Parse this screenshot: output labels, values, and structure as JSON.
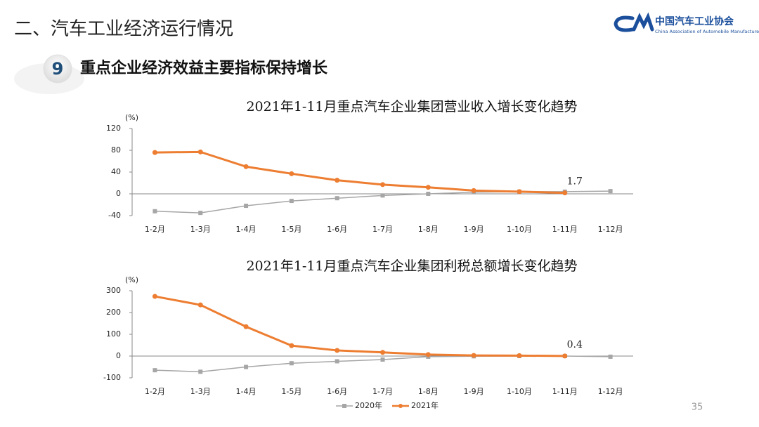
{
  "header": {
    "title": "二、汽车工业经济运行情况",
    "section_number": "9",
    "subtitle": "重点企业经济效益主要指标保持增长",
    "logo_cn": "中国汽车工业协会",
    "logo_en": "China Association of Automobile Manufacturers"
  },
  "page_number": "35",
  "chart_data": [
    {
      "type": "line",
      "title": "2021年1-11月重点汽车企业集团营业收入增长变化趋势",
      "y_unit": "(%)",
      "categories": [
        "1-2月",
        "1-3月",
        "1-4月",
        "1-5月",
        "1-6月",
        "1-7月",
        "1-8月",
        "1-9月",
        "1-10月",
        "1-11月",
        "1-12月"
      ],
      "series": [
        {
          "name": "2020年",
          "color": "#a6a6a6",
          "marker": "square",
          "values": [
            -32,
            -35,
            -22,
            -13,
            -8,
            -3,
            0,
            3,
            4,
            4,
            5
          ]
        },
        {
          "name": "2021年",
          "color": "#ed7d31",
          "marker": "circle",
          "values": [
            76,
            77,
            50,
            37,
            25,
            17,
            12,
            6,
            4,
            1.7,
            null
          ],
          "value_labels": [
            null,
            null,
            null,
            null,
            null,
            null,
            null,
            null,
            null,
            "1.7",
            null
          ]
        }
      ],
      "ylim": [
        -40,
        120
      ],
      "yticks": [
        -40,
        0,
        40,
        80,
        120
      ],
      "legend": false
    },
    {
      "type": "line",
      "title": "2021年1-11月重点汽车企业集团利税总额增长变化趋势",
      "y_unit": "(%)",
      "categories": [
        "1-2月",
        "1-3月",
        "1-4月",
        "1-5月",
        "1-6月",
        "1-7月",
        "1-8月",
        "1-9月",
        "1-10月",
        "1-11月",
        "1-12月"
      ],
      "series": [
        {
          "name": "2020年",
          "color": "#a6a6a6",
          "marker": "square",
          "values": [
            -65,
            -72,
            -50,
            -33,
            -24,
            -16,
            -3,
            -1,
            0,
            0,
            -3
          ]
        },
        {
          "name": "2021年",
          "color": "#ed7d31",
          "marker": "circle",
          "values": [
            274,
            235,
            135,
            48,
            26,
            17,
            7,
            3,
            2,
            0.4,
            null
          ],
          "value_labels": [
            null,
            null,
            null,
            null,
            null,
            null,
            null,
            null,
            null,
            "0.4",
            null
          ]
        }
      ],
      "ylim": [
        -100,
        300
      ],
      "yticks": [
        -100,
        0,
        100,
        200,
        300
      ],
      "legend": "bottom"
    }
  ]
}
